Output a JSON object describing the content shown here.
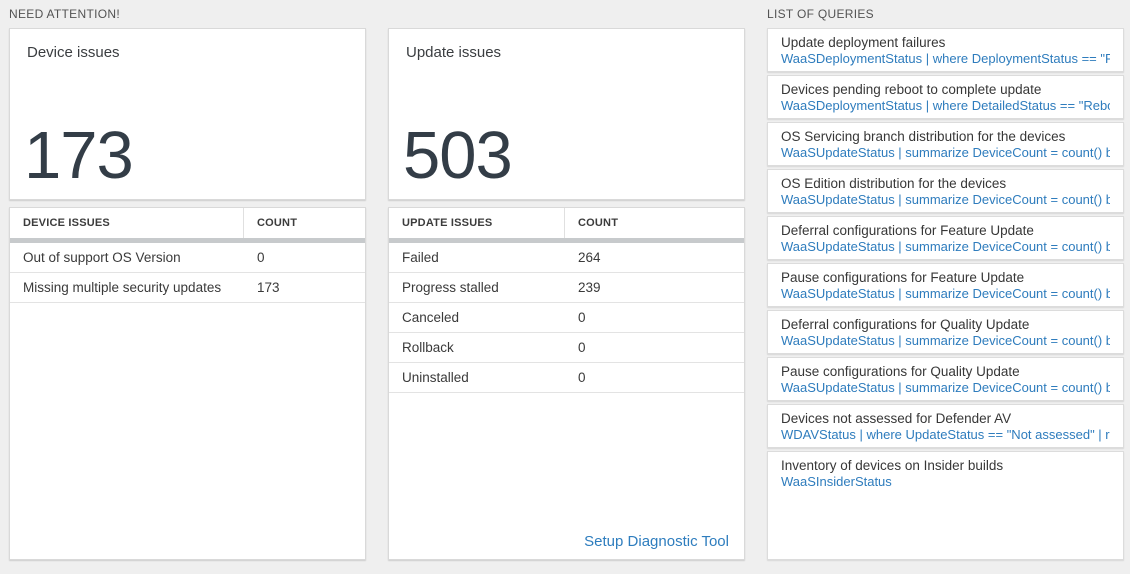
{
  "colors": {
    "page_background": "#efefef",
    "big_number": "#333d47",
    "link_blue": "#2e7dbe",
    "query_blue": "#2e7cbd",
    "thick_bar_gray": "#c7cacc"
  },
  "sections": {
    "need_attention_label": "NEED ATTENTION!",
    "list_of_queries_label": "LIST OF QUERIES"
  },
  "device": {
    "card_title": "Device issues",
    "big_count": "173",
    "table": {
      "header_issue": "DEVICE ISSUES",
      "header_count": "COUNT",
      "rows": [
        {
          "label": "Out of support OS Version",
          "count": "0"
        },
        {
          "label": "Missing multiple security updates",
          "count": "173"
        }
      ]
    }
  },
  "update": {
    "card_title": "Update issues",
    "big_count": "503",
    "table": {
      "header_issue": "UPDATE ISSUES",
      "header_count": "COUNT",
      "rows": [
        {
          "label": "Failed",
          "count": "264"
        },
        {
          "label": "Progress stalled",
          "count": "239"
        },
        {
          "label": "Canceled",
          "count": "0"
        },
        {
          "label": "Rollback",
          "count": "0"
        },
        {
          "label": "Uninstalled",
          "count": "0"
        }
      ]
    },
    "setup_link_label": "Setup Diagnostic Tool"
  },
  "queries": {
    "items": [
      {
        "title": "Update deployment failures",
        "query": "WaaSDeploymentStatus | where DeploymentStatus == \"Failed\" |..."
      },
      {
        "title": "Devices pending reboot to complete update",
        "query": "WaaSDeploymentStatus | where DetailedStatus == \"Reboot pend..."
      },
      {
        "title": "OS Servicing branch distribution for the devices",
        "query": "WaaSUpdateStatus | summarize DeviceCount = count() by OSSer..."
      },
      {
        "title": "OS Edition distribution for the devices",
        "query": "WaaSUpdateStatus | summarize DeviceCount = count() by OSEdit..."
      },
      {
        "title": "Deferral configurations for Feature Update",
        "query": "WaaSUpdateStatus | summarize DeviceCount = count() by Featur..."
      },
      {
        "title": "Pause configurations for Feature Update",
        "query": "WaaSUpdateStatus | summarize DeviceCount = count() by Featur..."
      },
      {
        "title": "Deferral configurations for Quality Update",
        "query": "WaaSUpdateStatus | summarize DeviceCount = count() by Qualit..."
      },
      {
        "title": "Pause configurations for Quality Update",
        "query": "WaaSUpdateStatus | summarize DeviceCount = count() by Qualit..."
      },
      {
        "title": "Devices not assessed for Defender AV",
        "query": "WDAVStatus | where UpdateStatus == \"Not assessed\" | render ta..."
      },
      {
        "title": "Inventory of devices on Insider builds",
        "query": "WaaSInsiderStatus"
      }
    ]
  }
}
